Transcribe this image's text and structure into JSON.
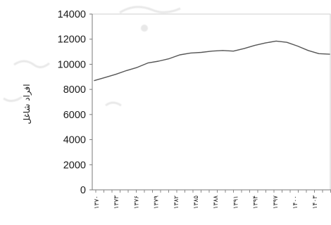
{
  "chart_data": {
    "type": "line",
    "title": "",
    "xlabel": "",
    "ylabel": "افراد شاغل",
    "ylim": [
      0,
      14000
    ],
    "yticks": [
      0,
      2000,
      4000,
      6000,
      8000,
      10000,
      12000,
      14000
    ],
    "ytick_labels": [
      "0",
      "2000",
      "4000",
      "6000",
      "8000",
      "10000",
      "12000",
      "14000"
    ],
    "xtick_labels": [
      "۱۳۷۰",
      "۱۳۷۳",
      "۱۳۷۶",
      "۱۳۷۹",
      "۱۳۸۲",
      "۱۳۸۵",
      "۱۳۸۸",
      "۱۳۹۱",
      "۱۳۹۴",
      "۱۳۹۷",
      "۱۴۰۰",
      "۱۴۰۳"
    ],
    "grid": false,
    "legend": "none",
    "series": [
      {
        "color": "#555555",
        "values": [
          8700,
          8950,
          9200,
          9500,
          9750,
          10100,
          10250,
          10450,
          10750,
          10900,
          10950,
          11050,
          11100,
          11050,
          11250,
          11500,
          11700,
          11850,
          11750,
          11450,
          11100,
          10850,
          10800
        ]
      }
    ]
  }
}
